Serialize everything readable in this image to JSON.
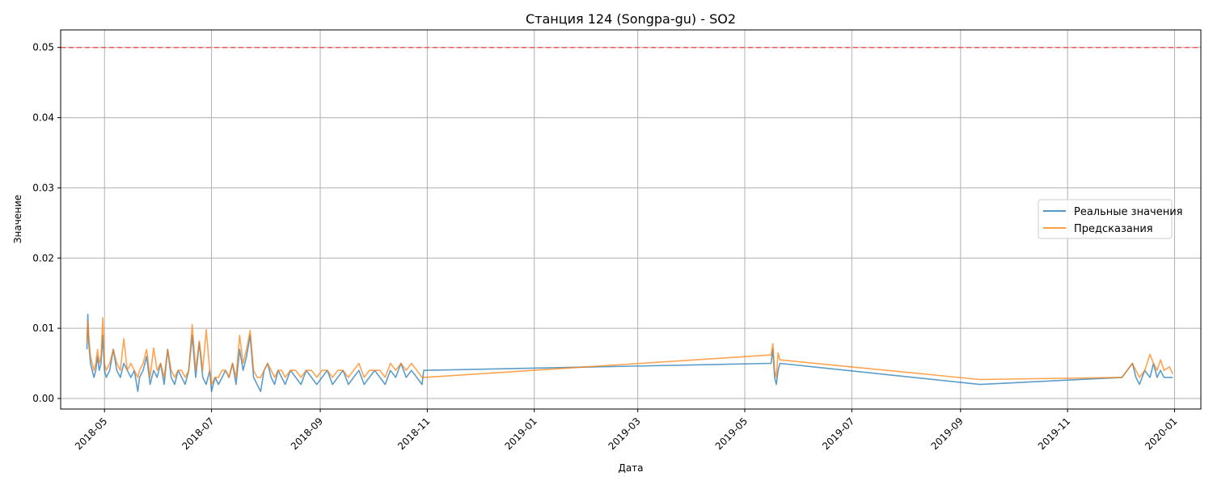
{
  "chart_data": {
    "type": "line",
    "title": "Станция 124 (Songpa-gu) - SO2",
    "xlabel": "Дата",
    "ylabel": "Значение",
    "xlim": [
      "2018-04-06",
      "2020-01-16"
    ],
    "ylim": [
      -0.0015,
      0.0525
    ],
    "x_ticks": [
      "2018-05",
      "2018-07",
      "2018-09",
      "2018-11",
      "2019-01",
      "2019-03",
      "2019-05",
      "2019-07",
      "2019-09",
      "2019-11",
      "2020-01"
    ],
    "y_ticks": [
      "0.00",
      "0.01",
      "0.02",
      "0.03",
      "0.04",
      "0.05"
    ],
    "grid": true,
    "legend_position": "center-right",
    "threshold": {
      "value": 0.05,
      "style": "dashed",
      "color": "#ff4444"
    },
    "series": [
      {
        "name": "Реальные значения",
        "color": "#1f77b4",
        "points": [
          [
            "2018-04-21",
            0.007
          ],
          [
            "2018-04-21T12",
            0.012
          ],
          [
            "2018-04-22",
            0.008
          ],
          [
            "2018-04-23",
            0.005
          ],
          [
            "2018-04-24",
            0.004
          ],
          [
            "2018-04-25",
            0.003
          ],
          [
            "2018-04-26",
            0.004
          ],
          [
            "2018-04-27",
            0.006
          ],
          [
            "2018-04-28",
            0.004
          ],
          [
            "2018-04-29",
            0.005
          ],
          [
            "2018-04-30",
            0.009
          ],
          [
            "2018-05-01",
            0.004
          ],
          [
            "2018-05-02",
            0.003
          ],
          [
            "2018-05-04",
            0.004
          ],
          [
            "2018-05-06",
            0.007
          ],
          [
            "2018-05-08",
            0.004
          ],
          [
            "2018-05-10",
            0.003
          ],
          [
            "2018-05-12",
            0.005
          ],
          [
            "2018-05-14",
            0.004
          ],
          [
            "2018-05-16",
            0.003
          ],
          [
            "2018-05-18",
            0.004
          ],
          [
            "2018-05-20",
            0.001
          ],
          [
            "2018-05-21",
            0.003
          ],
          [
            "2018-05-23",
            0.004
          ],
          [
            "2018-05-25",
            0.006
          ],
          [
            "2018-05-27",
            0.002
          ],
          [
            "2018-05-29",
            0.004
          ],
          [
            "2018-05-31",
            0.003
          ],
          [
            "2018-06-02",
            0.005
          ],
          [
            "2018-06-04",
            0.002
          ],
          [
            "2018-06-06",
            0.007
          ],
          [
            "2018-06-08",
            0.003
          ],
          [
            "2018-06-10",
            0.002
          ],
          [
            "2018-06-12",
            0.004
          ],
          [
            "2018-06-14",
            0.003
          ],
          [
            "2018-06-16",
            0.002
          ],
          [
            "2018-06-18",
            0.004
          ],
          [
            "2018-06-20",
            0.009
          ],
          [
            "2018-06-22",
            0.003
          ],
          [
            "2018-06-24",
            0.008
          ],
          [
            "2018-06-26",
            0.003
          ],
          [
            "2018-06-28",
            0.002
          ],
          [
            "2018-06-30",
            0.004
          ],
          [
            "2018-07-01",
            0.001
          ],
          [
            "2018-07-03",
            0.003
          ],
          [
            "2018-07-05",
            0.002
          ],
          [
            "2018-07-07",
            0.003
          ],
          [
            "2018-07-09",
            0.004
          ],
          [
            "2018-07-11",
            0.003
          ],
          [
            "2018-07-13",
            0.005
          ],
          [
            "2018-07-15",
            0.002
          ],
          [
            "2018-07-17",
            0.007
          ],
          [
            "2018-07-19",
            0.004
          ],
          [
            "2018-07-21",
            0.006
          ],
          [
            "2018-07-23",
            0.009
          ],
          [
            "2018-07-25",
            0.003
          ],
          [
            "2018-07-27",
            0.002
          ],
          [
            "2018-07-29",
            0.001
          ],
          [
            "2018-07-31",
            0.004
          ],
          [
            "2018-08-02",
            0.005
          ],
          [
            "2018-08-04",
            0.003
          ],
          [
            "2018-08-06",
            0.002
          ],
          [
            "2018-08-08",
            0.004
          ],
          [
            "2018-08-10",
            0.003
          ],
          [
            "2018-08-12",
            0.002
          ],
          [
            "2018-08-15",
            0.004
          ],
          [
            "2018-08-18",
            0.003
          ],
          [
            "2018-08-21",
            0.002
          ],
          [
            "2018-08-24",
            0.004
          ],
          [
            "2018-08-27",
            0.003
          ],
          [
            "2018-08-30",
            0.002
          ],
          [
            "2018-09-02",
            0.003
          ],
          [
            "2018-09-05",
            0.004
          ],
          [
            "2018-09-08",
            0.002
          ],
          [
            "2018-09-11",
            0.003
          ],
          [
            "2018-09-14",
            0.004
          ],
          [
            "2018-09-17",
            0.002
          ],
          [
            "2018-09-20",
            0.003
          ],
          [
            "2018-09-23",
            0.004
          ],
          [
            "2018-09-26",
            0.002
          ],
          [
            "2018-09-29",
            0.003
          ],
          [
            "2018-10-02",
            0.004
          ],
          [
            "2018-10-05",
            0.003
          ],
          [
            "2018-10-08",
            0.002
          ],
          [
            "2018-10-11",
            0.004
          ],
          [
            "2018-10-14",
            0.003
          ],
          [
            "2018-10-17",
            0.005
          ],
          [
            "2018-10-20",
            0.003
          ],
          [
            "2018-10-23",
            0.004
          ],
          [
            "2018-10-26",
            0.003
          ],
          [
            "2018-10-29",
            0.002
          ],
          [
            "2018-10-30",
            0.004
          ],
          [
            "2019-05-16",
            0.005
          ],
          [
            "2019-05-17",
            0.007
          ],
          [
            "2019-05-18",
            0.003
          ],
          [
            "2019-05-19",
            0.002
          ],
          [
            "2019-05-20",
            0.004
          ],
          [
            "2019-05-21",
            0.005
          ],
          [
            "2019-09-12",
            0.002
          ],
          [
            "2019-12-02",
            0.003
          ],
          [
            "2019-12-05",
            0.004
          ],
          [
            "2019-12-08",
            0.005
          ],
          [
            "2019-12-10",
            0.003
          ],
          [
            "2019-12-12",
            0.002
          ],
          [
            "2019-12-15",
            0.004
          ],
          [
            "2019-12-18",
            0.003
          ],
          [
            "2019-12-20",
            0.005
          ],
          [
            "2019-12-22",
            0.003
          ],
          [
            "2019-12-24",
            0.004
          ],
          [
            "2019-12-26",
            0.003
          ],
          [
            "2019-12-29",
            0.003
          ],
          [
            "2019-12-31",
            0.003
          ]
        ]
      },
      {
        "name": "Предсказания",
        "color": "#ff7f0e",
        "points": [
          [
            "2018-04-21",
            0.008
          ],
          [
            "2018-04-21T12",
            0.011
          ],
          [
            "2018-04-22",
            0.009
          ],
          [
            "2018-04-23",
            0.006
          ],
          [
            "2018-04-24",
            0.005
          ],
          [
            "2018-04-25",
            0.004
          ],
          [
            "2018-04-26",
            0.005
          ],
          [
            "2018-04-27",
            0.007
          ],
          [
            "2018-04-28",
            0.005
          ],
          [
            "2018-04-29",
            0.006
          ],
          [
            "2018-04-30",
            0.0115
          ],
          [
            "2018-05-01",
            0.005
          ],
          [
            "2018-05-02",
            0.004
          ],
          [
            "2018-05-04",
            0.005
          ],
          [
            "2018-05-06",
            0.007
          ],
          [
            "2018-05-08",
            0.005
          ],
          [
            "2018-05-10",
            0.004
          ],
          [
            "2018-05-12",
            0.0085
          ],
          [
            "2018-05-14",
            0.004
          ],
          [
            "2018-05-16",
            0.005
          ],
          [
            "2018-05-18",
            0.004
          ],
          [
            "2018-05-20",
            0.003
          ],
          [
            "2018-05-21",
            0.004
          ],
          [
            "2018-05-23",
            0.005
          ],
          [
            "2018-05-25",
            0.007
          ],
          [
            "2018-05-27",
            0.003
          ],
          [
            "2018-05-29",
            0.0072
          ],
          [
            "2018-05-31",
            0.004
          ],
          [
            "2018-06-02",
            0.005
          ],
          [
            "2018-06-04",
            0.003
          ],
          [
            "2018-06-06",
            0.007
          ],
          [
            "2018-06-08",
            0.004
          ],
          [
            "2018-06-10",
            0.003
          ],
          [
            "2018-06-12",
            0.004
          ],
          [
            "2018-06-14",
            0.004
          ],
          [
            "2018-06-16",
            0.003
          ],
          [
            "2018-06-18",
            0.004
          ],
          [
            "2018-06-20",
            0.0105
          ],
          [
            "2018-06-22",
            0.004
          ],
          [
            "2018-06-24",
            0.0082
          ],
          [
            "2018-06-26",
            0.004
          ],
          [
            "2018-06-28",
            0.0098
          ],
          [
            "2018-06-30",
            0.004
          ],
          [
            "2018-07-01",
            0.002
          ],
          [
            "2018-07-03",
            0.003
          ],
          [
            "2018-07-05",
            0.003
          ],
          [
            "2018-07-07",
            0.004
          ],
          [
            "2018-07-09",
            0.004
          ],
          [
            "2018-07-11",
            0.003
          ],
          [
            "2018-07-13",
            0.005
          ],
          [
            "2018-07-15",
            0.003
          ],
          [
            "2018-07-17",
            0.009
          ],
          [
            "2018-07-19",
            0.005
          ],
          [
            "2018-07-21",
            0.007
          ],
          [
            "2018-07-23",
            0.0097
          ],
          [
            "2018-07-25",
            0.004
          ],
          [
            "2018-07-27",
            0.003
          ],
          [
            "2018-07-29",
            0.003
          ],
          [
            "2018-07-31",
            0.004
          ],
          [
            "2018-08-02",
            0.005
          ],
          [
            "2018-08-04",
            0.004
          ],
          [
            "2018-08-06",
            0.003
          ],
          [
            "2018-08-08",
            0.004
          ],
          [
            "2018-08-10",
            0.004
          ],
          [
            "2018-08-12",
            0.003
          ],
          [
            "2018-08-15",
            0.004
          ],
          [
            "2018-08-18",
            0.004
          ],
          [
            "2018-08-21",
            0.003
          ],
          [
            "2018-08-24",
            0.004
          ],
          [
            "2018-08-27",
            0.004
          ],
          [
            "2018-08-30",
            0.003
          ],
          [
            "2018-09-02",
            0.004
          ],
          [
            "2018-09-05",
            0.004
          ],
          [
            "2018-09-08",
            0.003
          ],
          [
            "2018-09-11",
            0.004
          ],
          [
            "2018-09-14",
            0.004
          ],
          [
            "2018-09-17",
            0.003
          ],
          [
            "2018-09-20",
            0.004
          ],
          [
            "2018-09-23",
            0.005
          ],
          [
            "2018-09-26",
            0.003
          ],
          [
            "2018-09-29",
            0.004
          ],
          [
            "2018-10-02",
            0.004
          ],
          [
            "2018-10-05",
            0.004
          ],
          [
            "2018-10-08",
            0.003
          ],
          [
            "2018-10-11",
            0.005
          ],
          [
            "2018-10-14",
            0.004
          ],
          [
            "2018-10-17",
            0.005
          ],
          [
            "2018-10-20",
            0.004
          ],
          [
            "2018-10-23",
            0.005
          ],
          [
            "2018-10-26",
            0.004
          ],
          [
            "2018-10-29",
            0.003
          ],
          [
            "2018-10-30",
            0.003
          ],
          [
            "2019-05-16",
            0.0062
          ],
          [
            "2019-05-17",
            0.0078
          ],
          [
            "2019-05-18",
            0.004
          ],
          [
            "2019-05-19",
            0.003
          ],
          [
            "2019-05-20",
            0.0065
          ],
          [
            "2019-05-21",
            0.0055
          ],
          [
            "2019-09-12",
            0.0027
          ],
          [
            "2019-12-02",
            0.003
          ],
          [
            "2019-12-05",
            0.004
          ],
          [
            "2019-12-08",
            0.005
          ],
          [
            "2019-12-10",
            0.004
          ],
          [
            "2019-12-12",
            0.003
          ],
          [
            "2019-12-15",
            0.004
          ],
          [
            "2019-12-18",
            0.0063
          ],
          [
            "2019-12-20",
            0.005
          ],
          [
            "2019-12-22",
            0.004
          ],
          [
            "2019-12-24",
            0.0055
          ],
          [
            "2019-12-26",
            0.004
          ],
          [
            "2019-12-29",
            0.0045
          ],
          [
            "2019-12-31",
            0.0035
          ]
        ]
      }
    ]
  }
}
